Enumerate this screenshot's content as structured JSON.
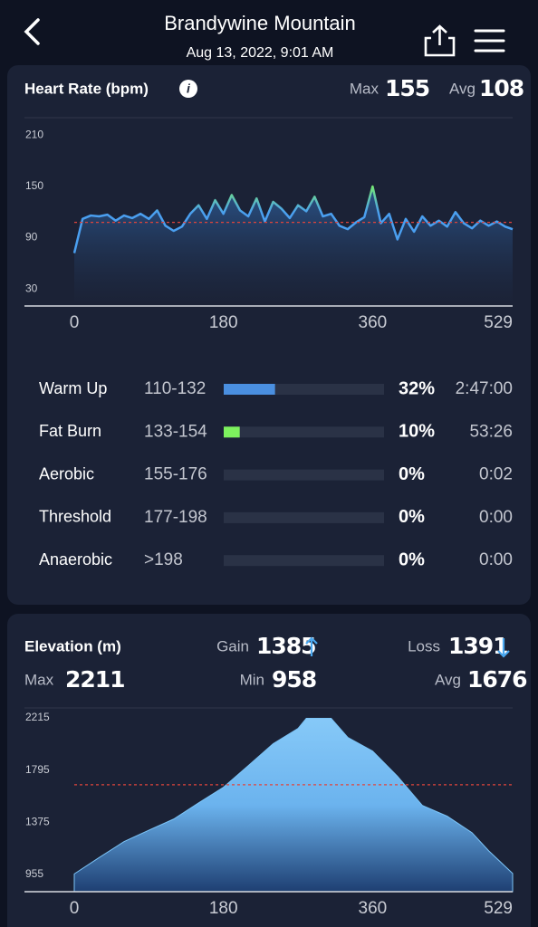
{
  "header": {
    "title": "Brandywine Mountain",
    "subtitle": "Aug 13, 2022, 9:01 AM"
  },
  "heart_rate": {
    "title": "Heart Rate (bpm)",
    "stats": [
      {
        "label": "Max",
        "value": 155
      },
      {
        "label": "Avg",
        "value": 108
      }
    ],
    "zones": [
      {
        "name": "Warm Up",
        "range": "110-132",
        "percent": {
          "value": 32,
          "label": "32%"
        },
        "time": "2:47:00",
        "color": "#4a8fe0"
      },
      {
        "name": "Fat Burn",
        "range": "133-154",
        "percent": {
          "value": 10,
          "label": "10%"
        },
        "time": "53:26",
        "color": "#7df25e"
      },
      {
        "name": "Aerobic",
        "range": "155-176",
        "percent": {
          "value": 0,
          "label": "0%"
        },
        "time": "0:02",
        "color": "#f0c040"
      },
      {
        "name": "Threshold",
        "range": "177-198",
        "percent": {
          "value": 0,
          "label": "0%"
        },
        "time": "0:00",
        "color": "#f08a40"
      },
      {
        "name": "Anaerobic",
        "range": ">198",
        "percent": {
          "value": 0,
          "label": "0%"
        },
        "time": "0:00",
        "color": "#f04848"
      }
    ]
  },
  "elevation": {
    "title": "Elevation (m)",
    "stats": [
      {
        "label": "Gain",
        "value": 1385
      },
      {
        "label": "Loss",
        "value": 1391
      },
      {
        "label": "Max",
        "value": 2211
      },
      {
        "label": "Min",
        "value": 958
      },
      {
        "label": "Avg",
        "value": 1676
      }
    ]
  },
  "chart_data": [
    {
      "type": "line",
      "color": "#4a9ff0",
      "peak_color": "#7ef55a",
      "x": [
        0,
        10,
        20,
        30,
        40,
        50,
        60,
        70,
        80,
        90,
        100,
        110,
        120,
        130,
        140,
        150,
        160,
        170,
        180,
        190,
        200,
        210,
        220,
        230,
        240,
        250,
        260,
        270,
        280,
        290,
        300,
        310,
        320,
        330,
        340,
        350,
        360,
        370,
        380,
        390,
        400,
        410,
        420,
        430,
        440,
        450,
        460,
        470,
        480,
        490,
        500,
        510,
        520,
        529
      ],
      "values": [
        72,
        112,
        116,
        115,
        117,
        110,
        116,
        113,
        118,
        112,
        122,
        104,
        98,
        103,
        118,
        128,
        112,
        134,
        118,
        140,
        122,
        115,
        136,
        109,
        132,
        124,
        113,
        128,
        121,
        138,
        115,
        118,
        104,
        100,
        108,
        114,
        150,
        107,
        118,
        88,
        112,
        97,
        115,
        104,
        110,
        103,
        120,
        107,
        101,
        110,
        104,
        109,
        103,
        100
      ],
      "xlim": [
        0,
        529
      ],
      "xticks": [
        0,
        180,
        360,
        529
      ],
      "ylim": [
        10,
        220
      ],
      "yticks": [
        210,
        150,
        90,
        30
      ]
    },
    {
      "type": "area",
      "color": "#7cc4f7",
      "x": [
        0,
        30,
        60,
        90,
        120,
        150,
        180,
        210,
        240,
        270,
        280,
        310,
        330,
        360,
        390,
        420,
        450,
        480,
        500,
        529
      ],
      "values": [
        958,
        1090,
        1218,
        1310,
        1400,
        1530,
        1656,
        1830,
        2007,
        2130,
        2211,
        2211,
        2058,
        1948,
        1745,
        1510,
        1423,
        1290,
        1145,
        962
      ],
      "xlim": [
        0,
        529
      ],
      "xticks": [
        0,
        180,
        360,
        529
      ],
      "ylim": [
        815,
        2295
      ],
      "yticks": [
        2215,
        1795,
        1375,
        955
      ]
    }
  ]
}
